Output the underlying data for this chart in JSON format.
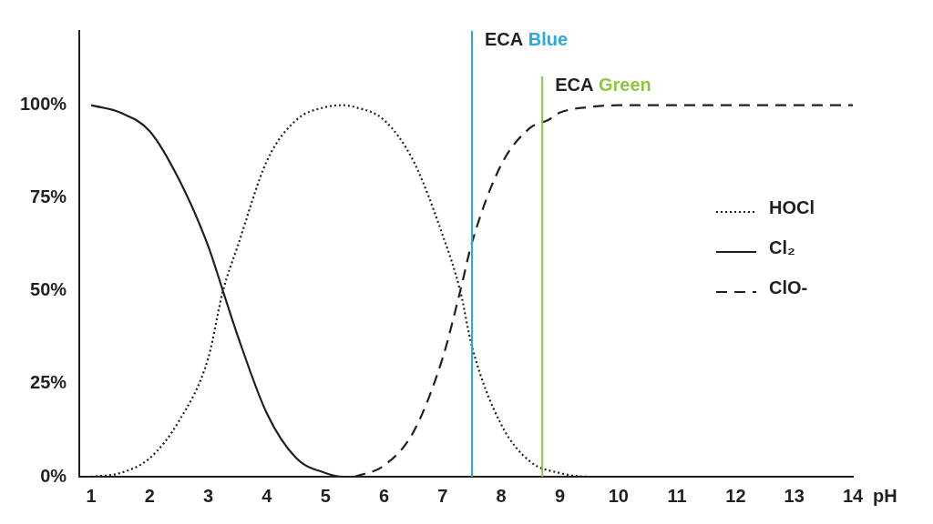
{
  "chart_data": {
    "type": "line",
    "xlabel": "pH",
    "xlim": [
      0.8,
      14
    ],
    "xticks": [
      1,
      2,
      3,
      4,
      5,
      6,
      7,
      8,
      9,
      10,
      11,
      12,
      13,
      14
    ],
    "ylim": [
      0,
      120
    ],
    "yticks": [
      {
        "value": 0,
        "label": "0%"
      },
      {
        "value": 25,
        "label": "25%"
      },
      {
        "value": 50,
        "label": "50%"
      },
      {
        "value": 75,
        "label": "75%"
      },
      {
        "value": 100,
        "label": "100%"
      }
    ],
    "grid": false,
    "legend": "right",
    "marker": "none",
    "series": [
      {
        "name": "HOCl",
        "color": "#231f20",
        "line_style": "dotted",
        "x": [
          1,
          1.5,
          2,
          2.5,
          3,
          3.25,
          3.5,
          4,
          4.5,
          5,
          5.3,
          5.5,
          6,
          6.5,
          7,
          7.3,
          7.5,
          8,
          8.5,
          9,
          9.5,
          10,
          14
        ],
        "values": [
          0,
          1,
          5,
          15,
          32,
          50,
          62,
          85,
          96,
          99.5,
          100,
          99.5,
          96,
          85,
          65,
          50,
          35,
          14,
          4,
          1,
          0,
          0,
          0
        ]
      },
      {
        "name": "Cl₂",
        "color": "#231f20",
        "line_style": "solid",
        "x": [
          1,
          1.5,
          2,
          2.5,
          3,
          3.25,
          3.5,
          4,
          4.5,
          5,
          5.3,
          5.5
        ],
        "values": [
          100,
          98,
          93,
          80,
          62,
          50,
          38,
          17,
          5,
          1,
          0,
          0
        ]
      },
      {
        "name": "ClO-",
        "color": "#231f20",
        "line_style": "dashed",
        "x": [
          5.5,
          6,
          6.5,
          7,
          7.3,
          7.5,
          8,
          8.5,
          8.8,
          9,
          9.5,
          10,
          14
        ],
        "values": [
          0,
          3,
          12,
          32,
          50,
          63,
          84,
          94,
          96,
          98,
          99.5,
          100,
          100
        ]
      }
    ],
    "ref_lines": [
      {
        "axis": "x",
        "value": 7.5,
        "label": "ECA Blue",
        "color": "#29abe2"
      },
      {
        "axis": "x",
        "value": 8.7,
        "label": "ECA Green",
        "color": "#8dc63f"
      }
    ]
  }
}
